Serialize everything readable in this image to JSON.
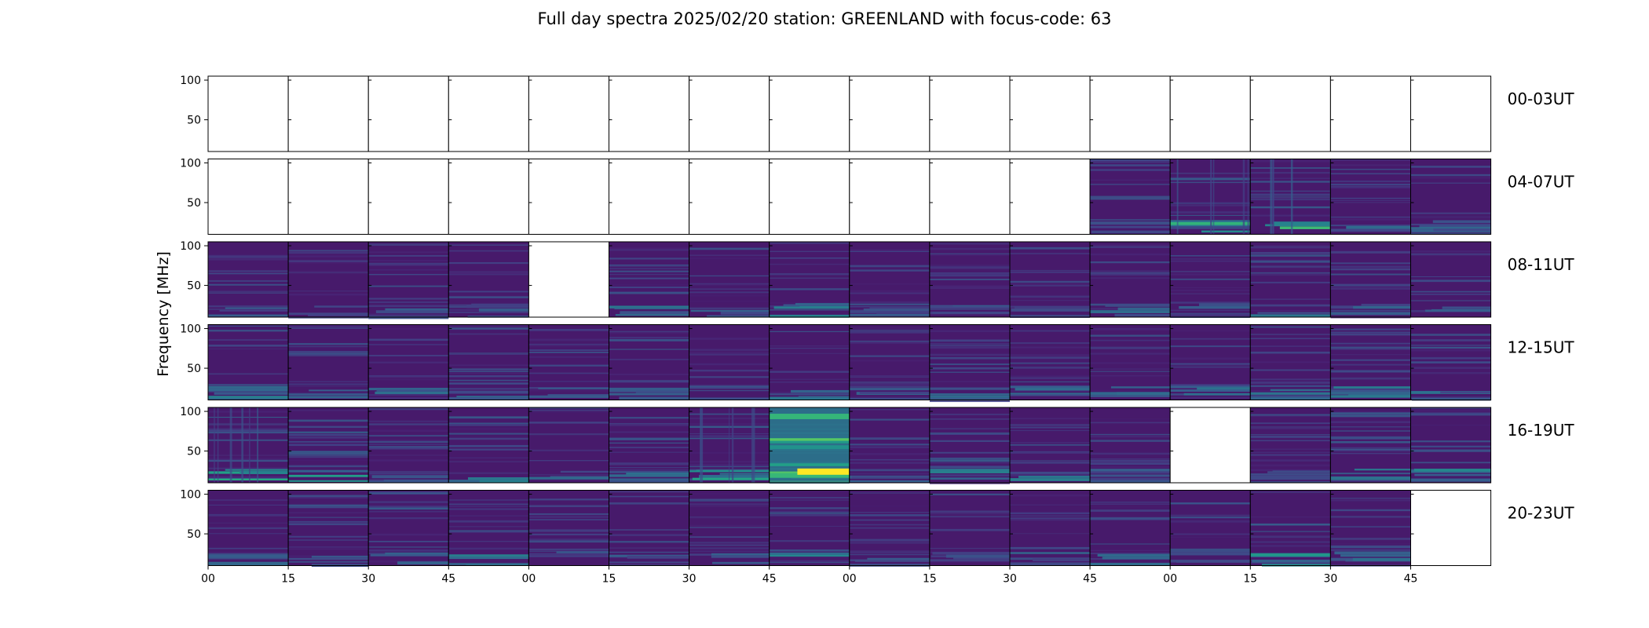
{
  "chart_data": {
    "type": "heatmap",
    "title": "Full day spectra 2025/02/20 station: GREENLAND with focus-code: 63",
    "ylabel": "Frequency [MHz]",
    "xlabel": "",
    "ylim": [
      10,
      105
    ],
    "y_ticks": [
      "50",
      "100"
    ],
    "x_tick_labels": [
      "00",
      "15",
      "30",
      "45",
      "00",
      "15",
      "30",
      "45",
      "00",
      "15",
      "30",
      "45",
      "00",
      "15",
      "30",
      "45"
    ],
    "colormap": "viridis",
    "colormap_colors": [
      "#440154",
      "#482475",
      "#414487",
      "#355f8d",
      "#2a788e",
      "#21918c",
      "#22a884",
      "#44bf70",
      "#7ad151",
      "#bddf26",
      "#fde725"
    ],
    "rows": [
      {
        "label": "00-03UT",
        "has_data": [
          0,
          0,
          0,
          0,
          0,
          0,
          0,
          0,
          0,
          0,
          0,
          0,
          0,
          0,
          0,
          0
        ],
        "peak_level": [
          0,
          0,
          0,
          0,
          0,
          0,
          0,
          0,
          0,
          0,
          0,
          0,
          0,
          0,
          0,
          0
        ]
      },
      {
        "label": "04-07UT",
        "has_data": [
          0,
          0,
          0,
          0,
          0,
          0,
          0,
          0,
          0,
          0,
          0,
          1,
          1,
          1,
          1,
          1
        ],
        "peak_level": [
          0,
          0,
          0,
          0,
          0,
          0,
          0,
          0,
          0,
          0,
          0,
          0.3,
          0.65,
          0.75,
          0.35,
          0.4
        ]
      },
      {
        "label": "08-11UT",
        "has_data": [
          1,
          1,
          1,
          1,
          0,
          1,
          1,
          1,
          1,
          1,
          1,
          1,
          1,
          1,
          1,
          1
        ],
        "peak_level": [
          0.35,
          0.3,
          0.3,
          0.35,
          0,
          0.4,
          0.35,
          0.45,
          0.3,
          0.3,
          0.3,
          0.4,
          0.3,
          0.4,
          0.35,
          0.3
        ]
      },
      {
        "label": "12-15UT",
        "has_data": [
          1,
          1,
          1,
          1,
          1,
          1,
          1,
          1,
          1,
          1,
          1,
          1,
          1,
          1,
          1,
          1
        ],
        "peak_level": [
          0.5,
          0.35,
          0.45,
          0.4,
          0.35,
          0.45,
          0.35,
          0.4,
          0.35,
          0.45,
          0.4,
          0.45,
          0.4,
          0.4,
          0.45,
          0.4
        ]
      },
      {
        "label": "16-19UT",
        "has_data": [
          1,
          1,
          1,
          1,
          1,
          1,
          1,
          1,
          1,
          1,
          1,
          1,
          0,
          1,
          1,
          1
        ],
        "peak_level": [
          0.65,
          0.6,
          0.4,
          0.45,
          0.35,
          0.4,
          0.7,
          1.0,
          0.35,
          0.55,
          0.45,
          0.35,
          0,
          0.35,
          0.6,
          0.5
        ]
      },
      {
        "label": "20-23UT",
        "has_data": [
          1,
          1,
          1,
          1,
          1,
          1,
          1,
          1,
          1,
          1,
          1,
          1,
          1,
          1,
          1,
          0
        ],
        "peak_level": [
          0.35,
          0.35,
          0.5,
          0.45,
          0.3,
          0.3,
          0.35,
          0.5,
          0.3,
          0.35,
          0.35,
          0.4,
          0.4,
          0.55,
          0.45,
          0
        ]
      }
    ],
    "grid": false
  }
}
